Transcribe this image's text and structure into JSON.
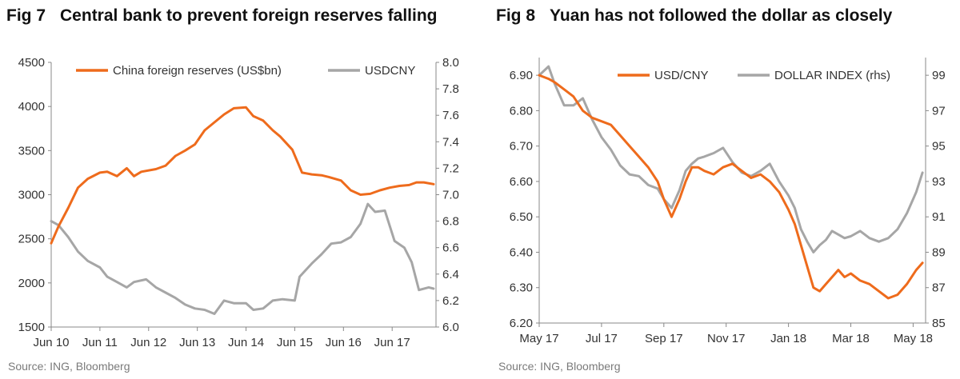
{
  "figures": [
    {
      "fig_number": "Fig 7",
      "title": "Central bank to prevent foreign reserves falling",
      "source": "Source: ING, Bloomberg"
    },
    {
      "fig_number": "Fig 8",
      "title": "Yuan has not followed the dollar as closely",
      "source": "Source: ING, Bloomberg"
    }
  ],
  "colors": {
    "orange": "#ee6b1c",
    "grey": "#a6a6a6",
    "axis": "#888888",
    "text": "#333333"
  },
  "chart_data": [
    {
      "type": "line",
      "title": "Central bank to prevent foreign reserves falling",
      "x_tick_labels": [
        "Jun 10",
        "Jun 11",
        "Jun 12",
        "Jun 13",
        "Jun 14",
        "Jun 15",
        "Jun 16",
        "Jun 17"
      ],
      "x_range": [
        2010.45,
        2018.35
      ],
      "y_left": {
        "range": [
          1500,
          4500
        ],
        "ticks": [
          1500,
          2000,
          2500,
          3000,
          3500,
          4000,
          4500
        ]
      },
      "y_right": {
        "range": [
          6.0,
          8.0
        ],
        "ticks": [
          "6.0",
          "6.2",
          "6.4",
          "6.6",
          "6.8",
          "7.0",
          "7.2",
          "7.4",
          "7.6",
          "7.8",
          "8.0"
        ]
      },
      "legend_position": "top",
      "series": [
        {
          "name": "China foreign  reserves (US$bn)",
          "axis": "left",
          "color": "#ee6b1c",
          "x": [
            2010.45,
            2010.6,
            2010.8,
            2011.0,
            2011.2,
            2011.45,
            2011.6,
            2011.8,
            2012.0,
            2012.15,
            2012.3,
            2012.6,
            2012.8,
            2013.0,
            2013.2,
            2013.4,
            2013.6,
            2013.8,
            2014.0,
            2014.2,
            2014.45,
            2014.6,
            2014.8,
            2015.0,
            2015.15,
            2015.4,
            2015.6,
            2015.8,
            2016.0,
            2016.15,
            2016.4,
            2016.6,
            2016.8,
            2017.0,
            2017.2,
            2017.4,
            2017.6,
            2017.8,
            2017.95,
            2018.1,
            2018.3
          ],
          "values": [
            2450,
            2640,
            2850,
            3080,
            3180,
            3250,
            3260,
            3210,
            3300,
            3210,
            3260,
            3290,
            3330,
            3440,
            3500,
            3570,
            3730,
            3820,
            3910,
            3980,
            3990,
            3890,
            3840,
            3730,
            3660,
            3510,
            3250,
            3230,
            3220,
            3200,
            3160,
            3050,
            3000,
            3010,
            3050,
            3080,
            3100,
            3110,
            3140,
            3140,
            3120
          ]
        },
        {
          "name": "USDCNY",
          "axis": "right",
          "color": "#a6a6a6",
          "x": [
            2010.45,
            2010.6,
            2010.8,
            2011.0,
            2011.2,
            2011.45,
            2011.6,
            2011.8,
            2012.0,
            2012.15,
            2012.4,
            2012.6,
            2012.8,
            2013.0,
            2013.2,
            2013.4,
            2013.6,
            2013.8,
            2014.0,
            2014.2,
            2014.45,
            2014.6,
            2014.8,
            2015.0,
            2015.2,
            2015.45,
            2015.55,
            2015.8,
            2016.0,
            2016.2,
            2016.4,
            2016.6,
            2016.8,
            2016.95,
            2017.1,
            2017.3,
            2017.5,
            2017.7,
            2017.85,
            2018.0,
            2018.2,
            2018.3
          ],
          "values": [
            6.8,
            6.77,
            6.68,
            6.57,
            6.5,
            6.45,
            6.38,
            6.34,
            6.3,
            6.34,
            6.36,
            6.3,
            6.26,
            6.22,
            6.17,
            6.14,
            6.13,
            6.1,
            6.2,
            6.18,
            6.18,
            6.13,
            6.14,
            6.2,
            6.21,
            6.2,
            6.38,
            6.48,
            6.55,
            6.63,
            6.64,
            6.68,
            6.78,
            6.93,
            6.87,
            6.88,
            6.65,
            6.6,
            6.49,
            6.28,
            6.3,
            6.29
          ]
        }
      ]
    },
    {
      "type": "line",
      "title": "Yuan has not followed the dollar as closely",
      "x_tick_labels": [
        "May 17",
        "Jul 17",
        "Sep 17",
        "Nov 17",
        "Jan 18",
        "Mar 18",
        "May 18"
      ],
      "x_tick_months": [
        0,
        2,
        4,
        6,
        8,
        10,
        12
      ],
      "x_range": [
        0,
        12.4
      ],
      "y_left": {
        "range": [
          6.2,
          6.95
        ],
        "ticks": [
          "6.20",
          "6.30",
          "6.40",
          "6.50",
          "6.60",
          "6.70",
          "6.80",
          "6.90"
        ]
      },
      "y_right": {
        "range": [
          85,
          100
        ],
        "ticks": [
          "85",
          "87",
          "89",
          "91",
          "93",
          "95",
          "97",
          "99"
        ]
      },
      "legend_position": "top",
      "series": [
        {
          "name": "USD/CNY",
          "axis": "left",
          "color": "#ee6b1c",
          "x": [
            0.0,
            0.3,
            0.5,
            0.8,
            1.1,
            1.4,
            1.7,
            2.0,
            2.3,
            2.6,
            2.9,
            3.2,
            3.5,
            3.8,
            4.0,
            4.25,
            4.5,
            4.7,
            4.9,
            5.1,
            5.3,
            5.6,
            5.9,
            6.2,
            6.5,
            6.8,
            7.1,
            7.4,
            7.7,
            8.0,
            8.2,
            8.4,
            8.6,
            8.8,
            9.0,
            9.2,
            9.4,
            9.6,
            9.8,
            10.0,
            10.3,
            10.6,
            10.9,
            11.2,
            11.5,
            11.8,
            12.1,
            12.3
          ],
          "values": [
            6.9,
            6.89,
            6.88,
            6.86,
            6.84,
            6.8,
            6.78,
            6.77,
            6.76,
            6.73,
            6.7,
            6.67,
            6.64,
            6.6,
            6.55,
            6.5,
            6.55,
            6.6,
            6.64,
            6.64,
            6.63,
            6.62,
            6.64,
            6.65,
            6.63,
            6.61,
            6.62,
            6.6,
            6.57,
            6.52,
            6.48,
            6.42,
            6.36,
            6.3,
            6.29,
            6.31,
            6.33,
            6.35,
            6.33,
            6.34,
            6.32,
            6.31,
            6.29,
            6.27,
            6.28,
            6.31,
            6.35,
            6.37
          ]
        },
        {
          "name": "DOLLAR INDEX (rhs)",
          "axis": "right",
          "color": "#a6a6a6",
          "x": [
            0.0,
            0.3,
            0.5,
            0.8,
            1.1,
            1.4,
            1.7,
            2.0,
            2.3,
            2.6,
            2.9,
            3.2,
            3.5,
            3.8,
            4.0,
            4.25,
            4.5,
            4.7,
            4.9,
            5.1,
            5.3,
            5.6,
            5.9,
            6.2,
            6.5,
            6.8,
            7.1,
            7.4,
            7.7,
            8.0,
            8.2,
            8.4,
            8.6,
            8.8,
            9.0,
            9.2,
            9.4,
            9.6,
            9.8,
            10.0,
            10.3,
            10.6,
            10.9,
            11.2,
            11.5,
            11.8,
            12.1,
            12.3
          ],
          "values": [
            99.0,
            99.5,
            98.5,
            97.3,
            97.3,
            97.7,
            96.5,
            95.5,
            94.8,
            93.9,
            93.4,
            93.3,
            92.8,
            92.6,
            92.0,
            91.5,
            92.5,
            93.6,
            94.0,
            94.3,
            94.4,
            94.6,
            94.9,
            94.1,
            93.5,
            93.3,
            93.6,
            94.0,
            93.0,
            92.2,
            91.5,
            90.3,
            89.6,
            89.0,
            89.4,
            89.7,
            90.2,
            90.0,
            89.8,
            89.9,
            90.2,
            89.8,
            89.6,
            89.8,
            90.3,
            91.2,
            92.4,
            93.5
          ]
        }
      ]
    }
  ]
}
